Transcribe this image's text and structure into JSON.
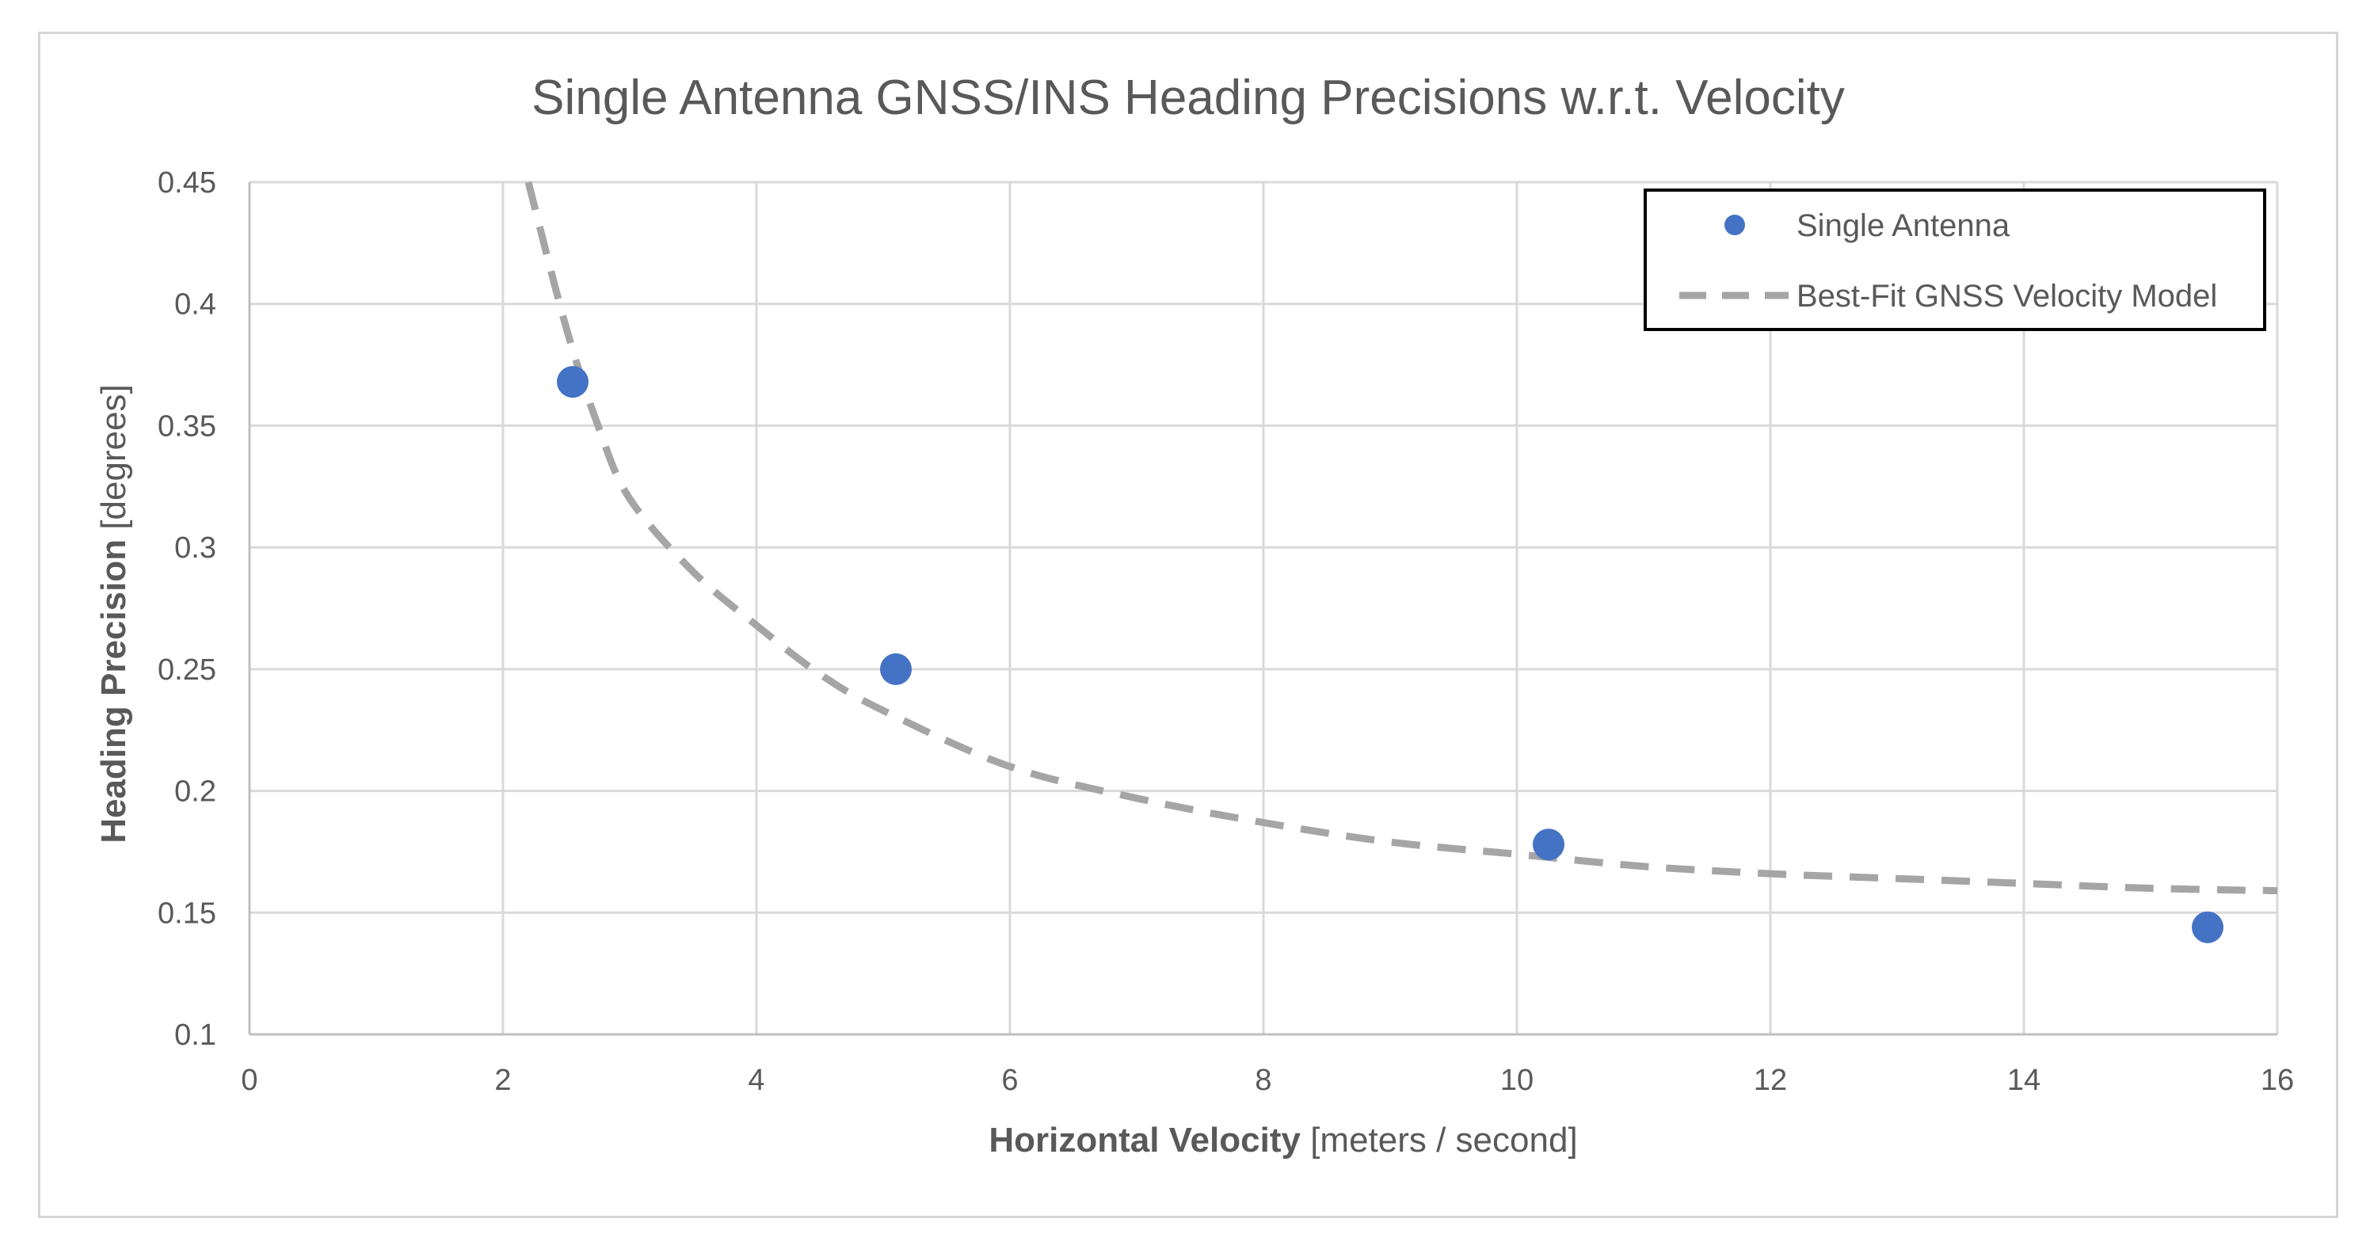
{
  "chart_data": {
    "type": "scatter",
    "title": "Single Antenna GNSS/INS Heading Precisions w.r.t. Velocity",
    "xlabel": {
      "bold": "Horizontal Velocity",
      "units": "[meters / second]"
    },
    "ylabel": {
      "bold": "Heading Precision",
      "units": "[degrees]"
    },
    "xlim": [
      0,
      16
    ],
    "ylim": [
      0.1,
      0.45
    ],
    "x_ticks": [
      0,
      2,
      4,
      6,
      8,
      10,
      12,
      14,
      16
    ],
    "y_ticks": [
      0.1,
      0.15,
      0.2,
      0.25,
      0.3,
      0.35,
      0.4,
      0.45
    ],
    "x_tick_labels": [
      "0",
      "2",
      "4",
      "6",
      "8",
      "10",
      "12",
      "14",
      "16"
    ],
    "y_tick_labels": [
      "0.1",
      "0.15",
      "0.2",
      "0.25",
      "0.3",
      "0.35",
      "0.4",
      "0.45"
    ],
    "grid": true,
    "series": [
      {
        "name": "Single Antenna",
        "kind": "scatter",
        "color": "#4472c4",
        "x": [
          2.55,
          5.1,
          10.25,
          15.45
        ],
        "y": [
          0.368,
          0.25,
          0.178,
          0.144
        ]
      },
      {
        "name": "Best-Fit GNSS Velocity Model",
        "kind": "line",
        "style": "dashed",
        "color": "#a5a5a5",
        "x": [
          2.2,
          2.5,
          2.75,
          3.0,
          3.5,
          4.0,
          4.5,
          5.0,
          6.0,
          7.0,
          8.0,
          9.0,
          10.0,
          11.0,
          12.0,
          13.0,
          14.0,
          15.0,
          16.0
        ],
        "y": [
          0.45,
          0.39,
          0.35,
          0.32,
          0.29,
          0.268,
          0.248,
          0.233,
          0.21,
          0.197,
          0.187,
          0.179,
          0.174,
          0.169,
          0.166,
          0.164,
          0.162,
          0.16,
          0.159
        ]
      }
    ],
    "legend": {
      "position": "top-right",
      "entries": [
        "Single Antenna",
        "Best-Fit GNSS Velocity Model"
      ]
    }
  }
}
